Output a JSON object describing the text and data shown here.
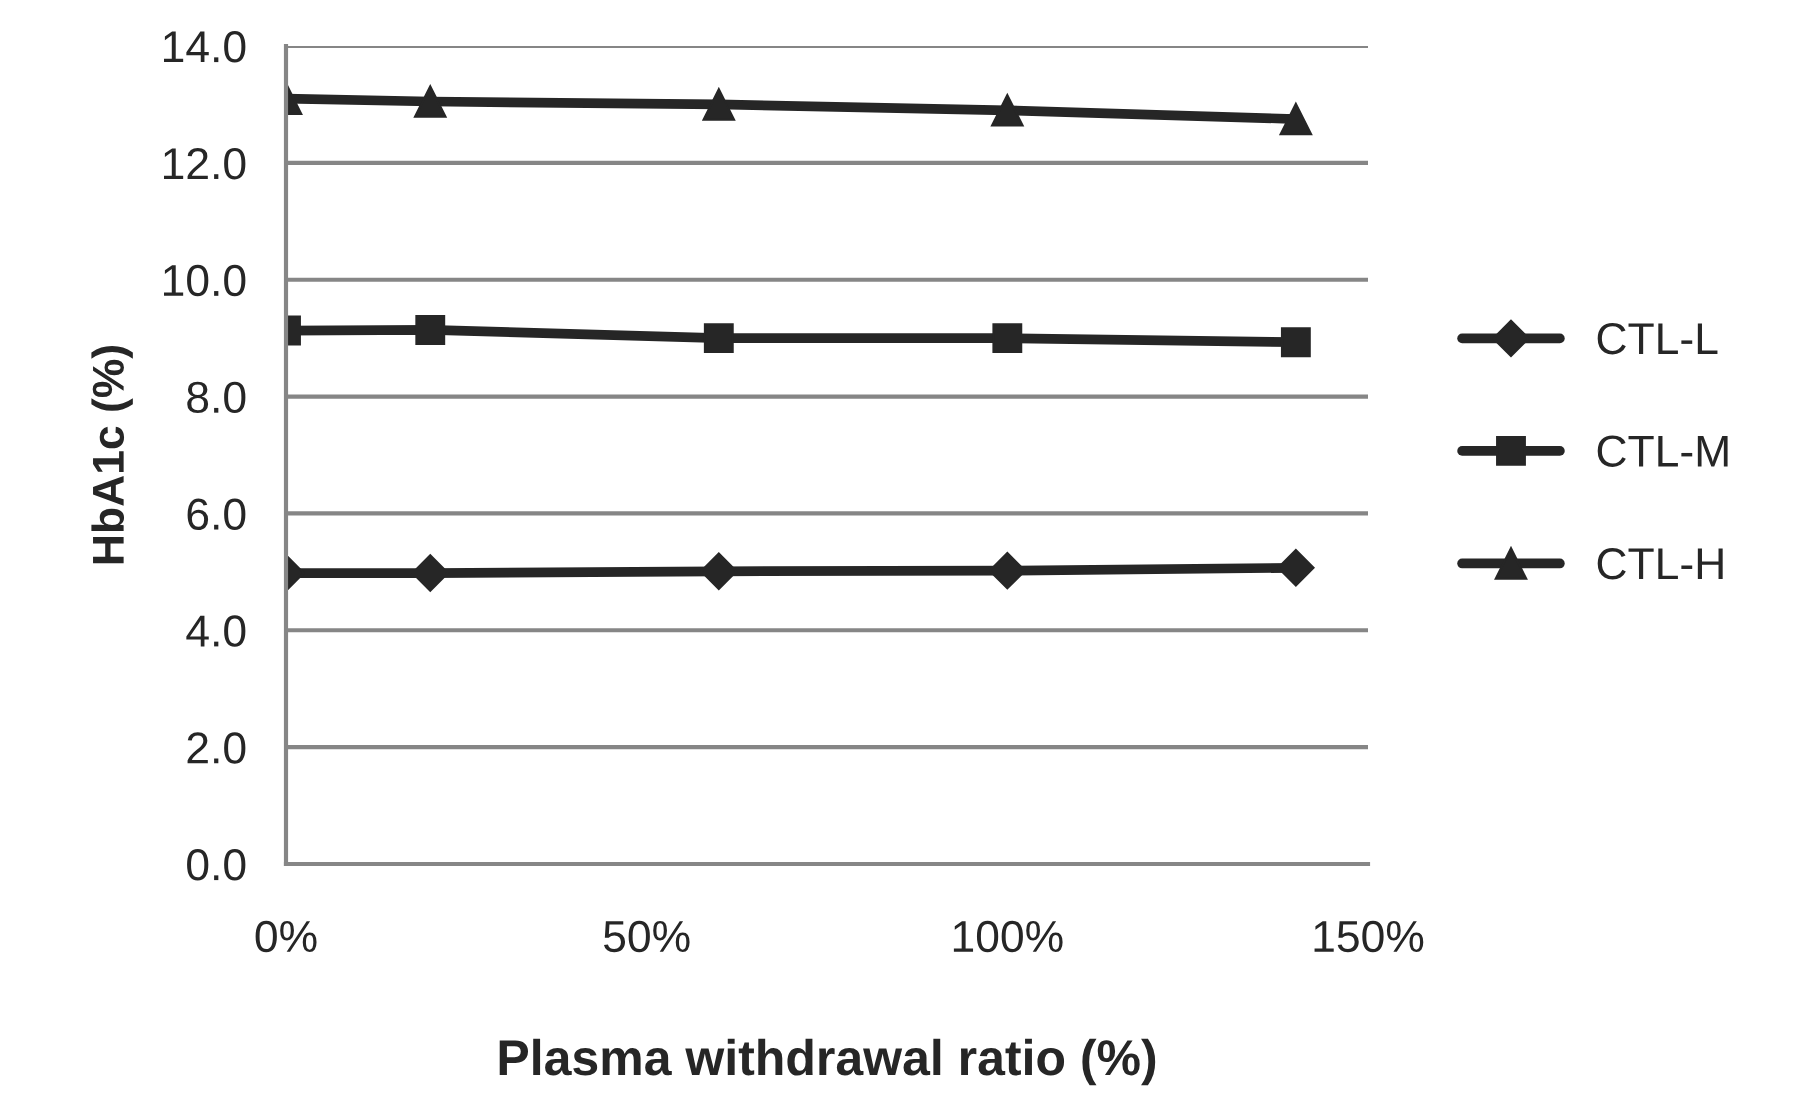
{
  "chart_data": {
    "type": "line",
    "xlabel": "Plasma withdrawal ratio (%)",
    "ylabel": "HbA1c (%)",
    "x": [
      0,
      20,
      60,
      100,
      140
    ],
    "series": [
      {
        "name": "CTL-L",
        "color": "#262626",
        "marker": "diamond",
        "values": [
          4.98,
          4.98,
          5.01,
          5.02,
          5.07
        ]
      },
      {
        "name": "CTL-M",
        "color": "#262626",
        "marker": "square",
        "values": [
          9.13,
          9.14,
          9.0,
          9.0,
          8.93
        ]
      },
      {
        "name": "CTL-H",
        "color": "#262626",
        "marker": "triangle",
        "values": [
          13.1,
          13.05,
          13.0,
          12.9,
          12.75
        ]
      }
    ],
    "xlim": [
      0,
      150
    ],
    "xticks": [
      {
        "value": 0,
        "label": "0%"
      },
      {
        "value": 50,
        "label": "50%"
      },
      {
        "value": 100,
        "label": "100%"
      },
      {
        "value": 150,
        "label": "150%"
      }
    ],
    "ylim": [
      0,
      14
    ],
    "yticks": [
      {
        "value": 0,
        "label": "0.0"
      },
      {
        "value": 2,
        "label": "2.0"
      },
      {
        "value": 4,
        "label": "4.0"
      },
      {
        "value": 6,
        "label": "6.0"
      },
      {
        "value": 8,
        "label": "8.0"
      },
      {
        "value": 10,
        "label": "10.0"
      },
      {
        "value": 12,
        "label": "12.0"
      },
      {
        "value": 14,
        "label": "14.0"
      }
    ],
    "grid": "y",
    "legend": "right",
    "line_style": "solid"
  }
}
